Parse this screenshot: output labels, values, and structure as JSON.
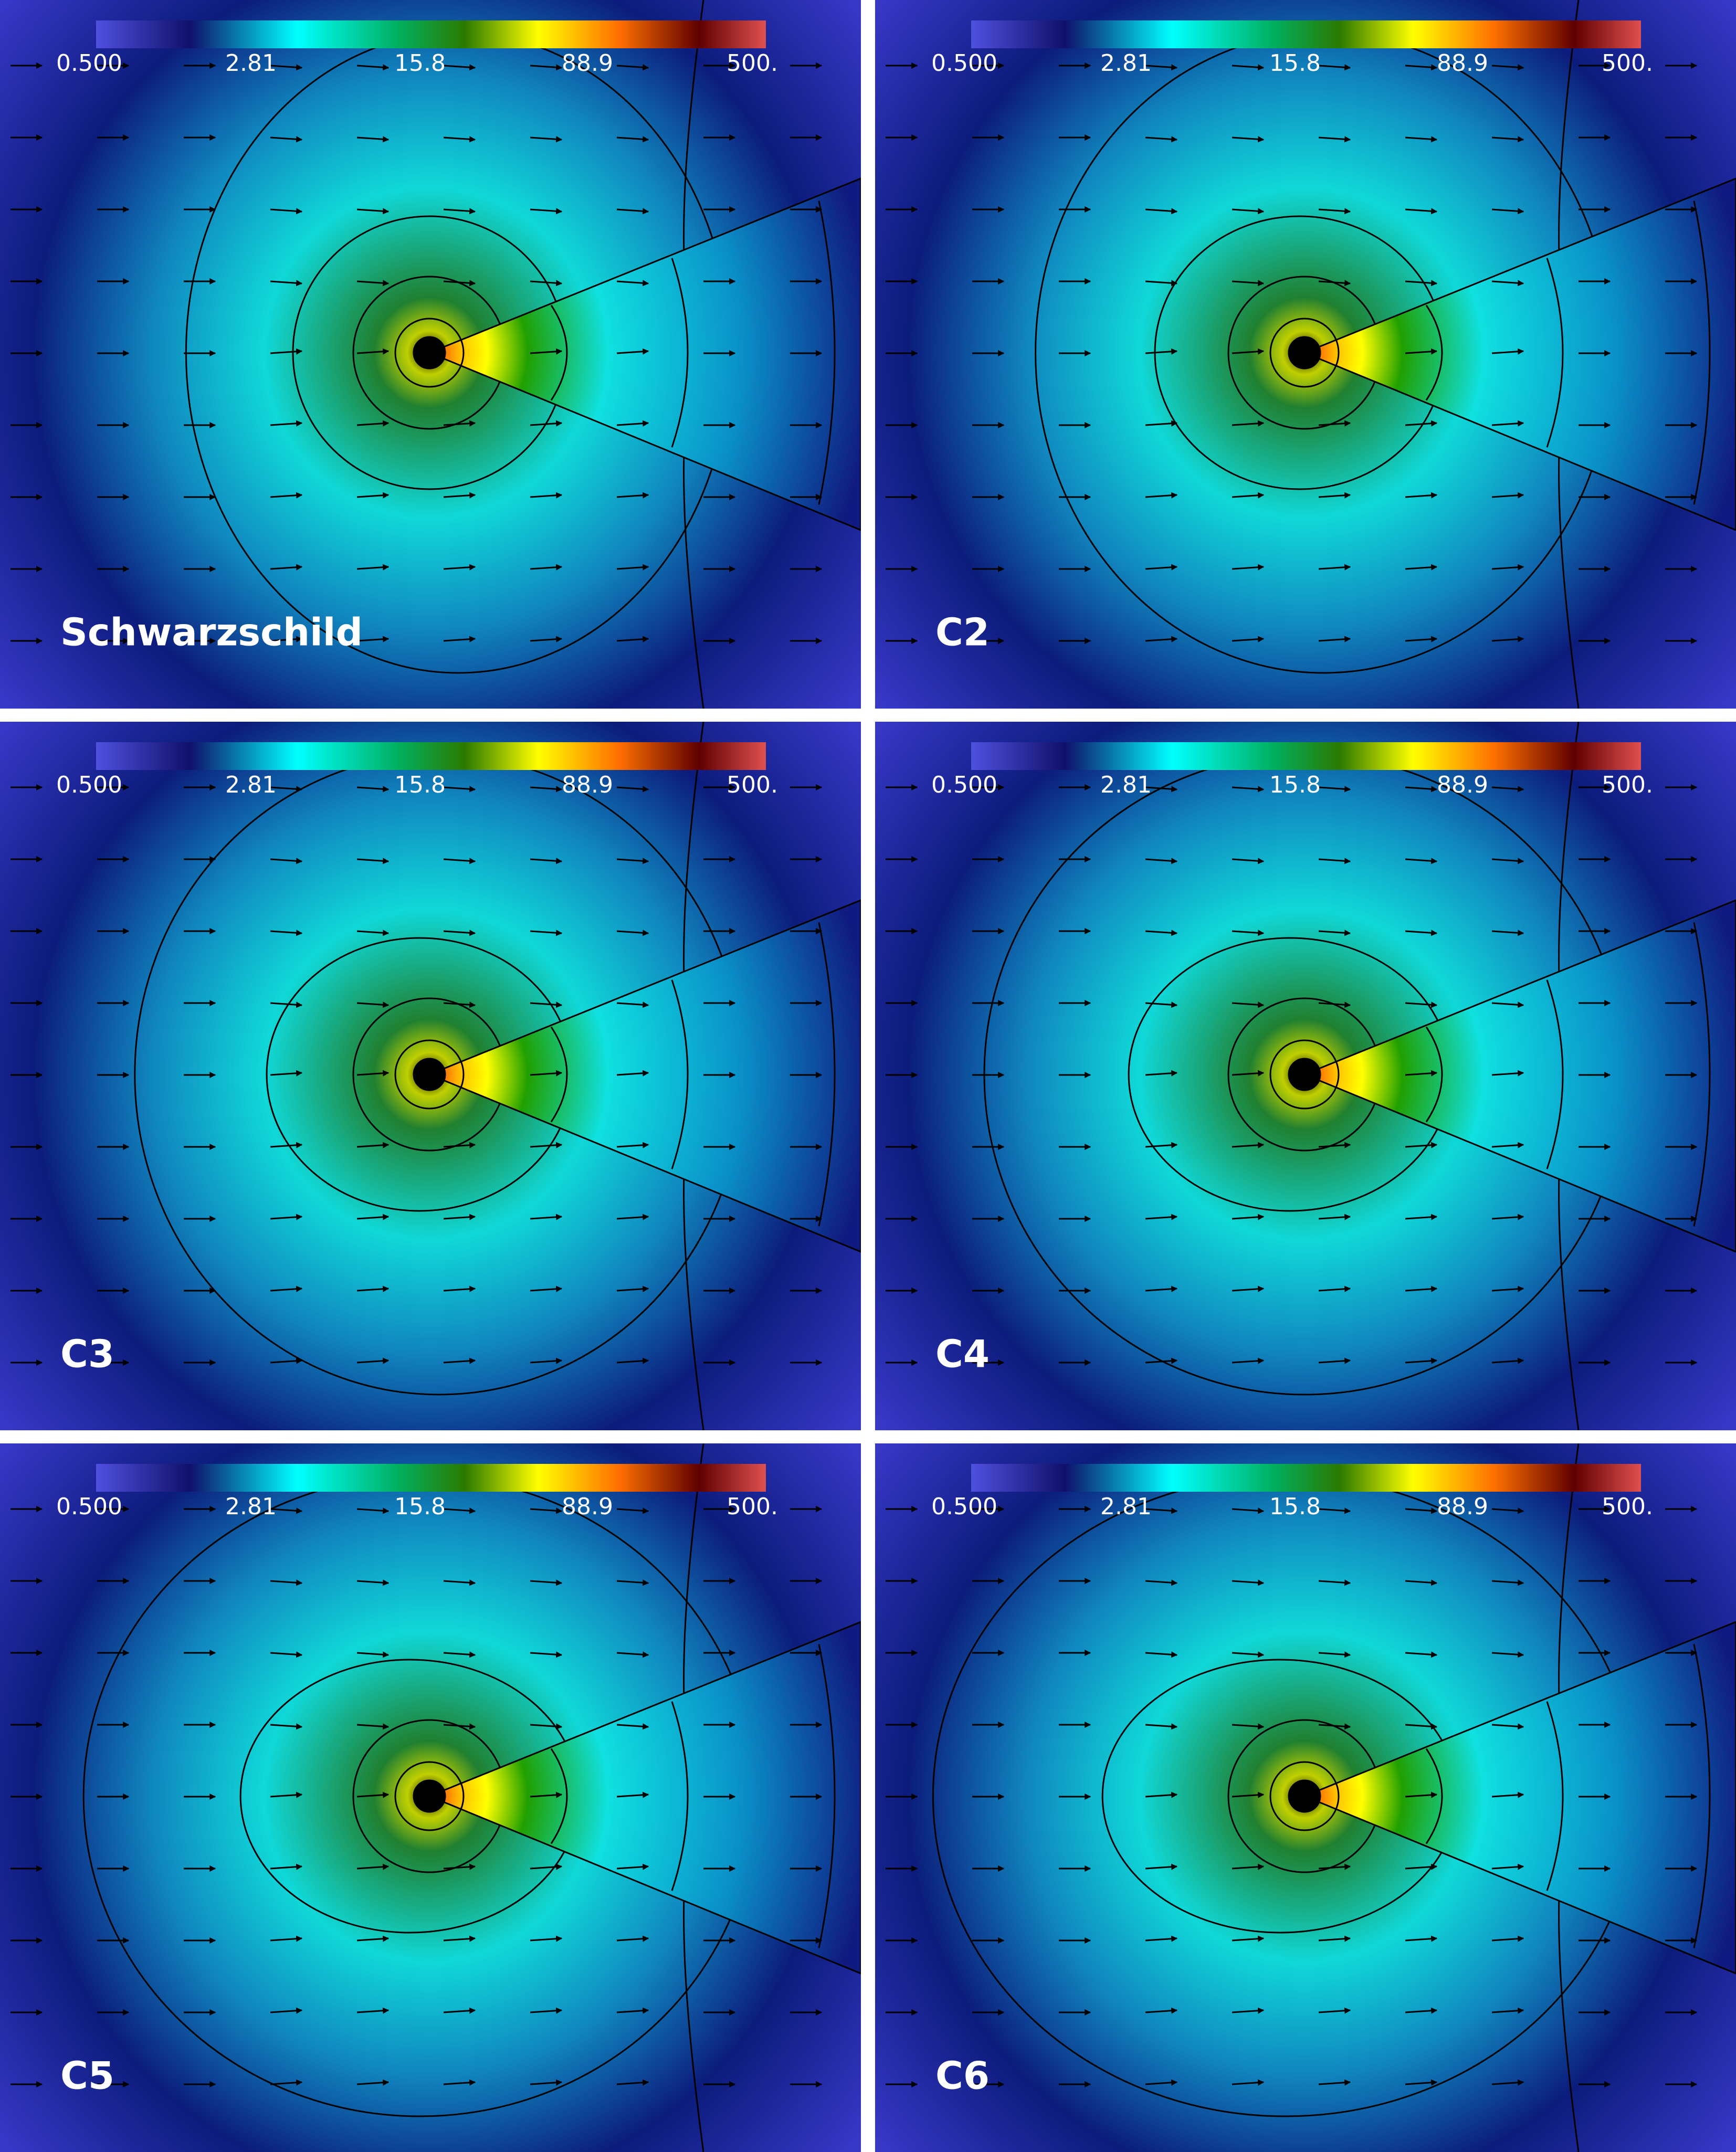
{
  "panels": [
    {
      "label": "Schwarzschild",
      "colorbar_ticks": [
        "0.500",
        "2.81",
        "15.8",
        "88.9",
        "500."
      ]
    },
    {
      "label": "C2",
      "colorbar_ticks": [
        "0.500",
        "2.81",
        "15.8",
        "88.9",
        "500."
      ]
    },
    {
      "label": "C3",
      "colorbar_ticks": [
        "0.500",
        "2.81",
        "15.8",
        "88.9",
        "500."
      ]
    },
    {
      "label": "C4",
      "colorbar_ticks": [
        "0.500",
        "2.81",
        "15.8",
        "88.9",
        "500."
      ]
    },
    {
      "label": "C5",
      "colorbar_ticks": [
        "0.500",
        "2.81",
        "15.8",
        "88.9",
        "500."
      ]
    },
    {
      "label": "C6",
      "colorbar_ticks": [
        "0.500",
        "2.81",
        "15.8",
        "88.9",
        "500."
      ]
    }
  ]
}
